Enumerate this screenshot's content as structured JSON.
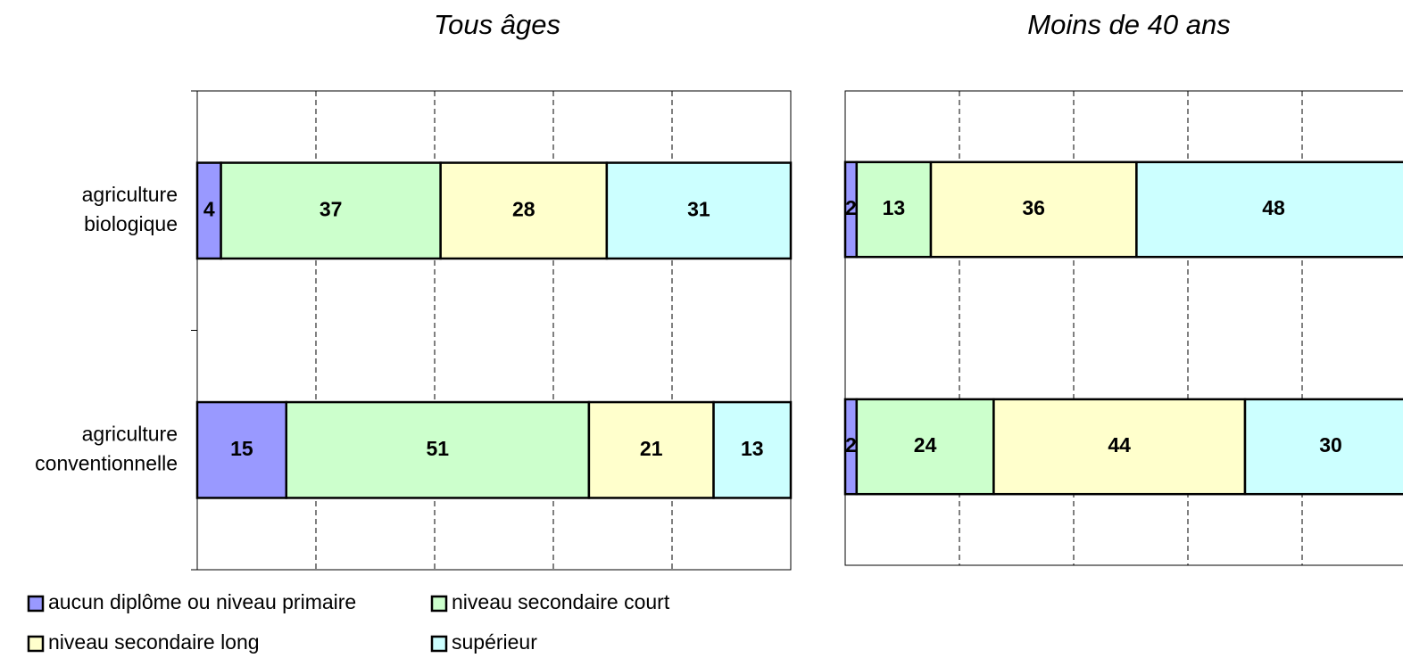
{
  "chart_data": [
    {
      "type": "bar",
      "orientation": "horizontal",
      "stacked": true,
      "title": "Tous âges",
      "categories": [
        [
          "agriculture",
          "biologique"
        ],
        [
          "agriculture",
          "conventionnelle"
        ]
      ],
      "series": [
        {
          "name": "aucun diplôme ou niveau primaire",
          "color": "#9999ff",
          "values": [
            4,
            15
          ]
        },
        {
          "name": "niveau secondaire court",
          "color": "#ccffcc",
          "values": [
            37,
            51
          ]
        },
        {
          "name": "niveau secondaire long",
          "color": "#ffffcc",
          "values": [
            28,
            21
          ]
        },
        {
          "name": "supérieur",
          "color": "#ccffff",
          "values": [
            31,
            13
          ]
        }
      ],
      "xlim": [
        0,
        100
      ],
      "xticks": [
        0,
        20,
        40,
        60,
        80,
        100
      ],
      "grid": true
    },
    {
      "type": "bar",
      "orientation": "horizontal",
      "stacked": true,
      "title": "Moins de 40 ans",
      "categories": [
        null,
        null
      ],
      "series": [
        {
          "color": "#9999ff",
          "values": [
            2,
            2
          ]
        },
        {
          "color": "#ccffcc",
          "values": [
            13,
            24
          ]
        },
        {
          "color": "#ffffcc",
          "values": [
            36,
            44
          ]
        },
        {
          "color": "#ccffff",
          "values": [
            48,
            30
          ]
        }
      ],
      "xlim": [
        0,
        100
      ],
      "xticks": [
        0,
        20,
        40,
        60,
        80,
        100
      ],
      "grid": true
    }
  ]
}
